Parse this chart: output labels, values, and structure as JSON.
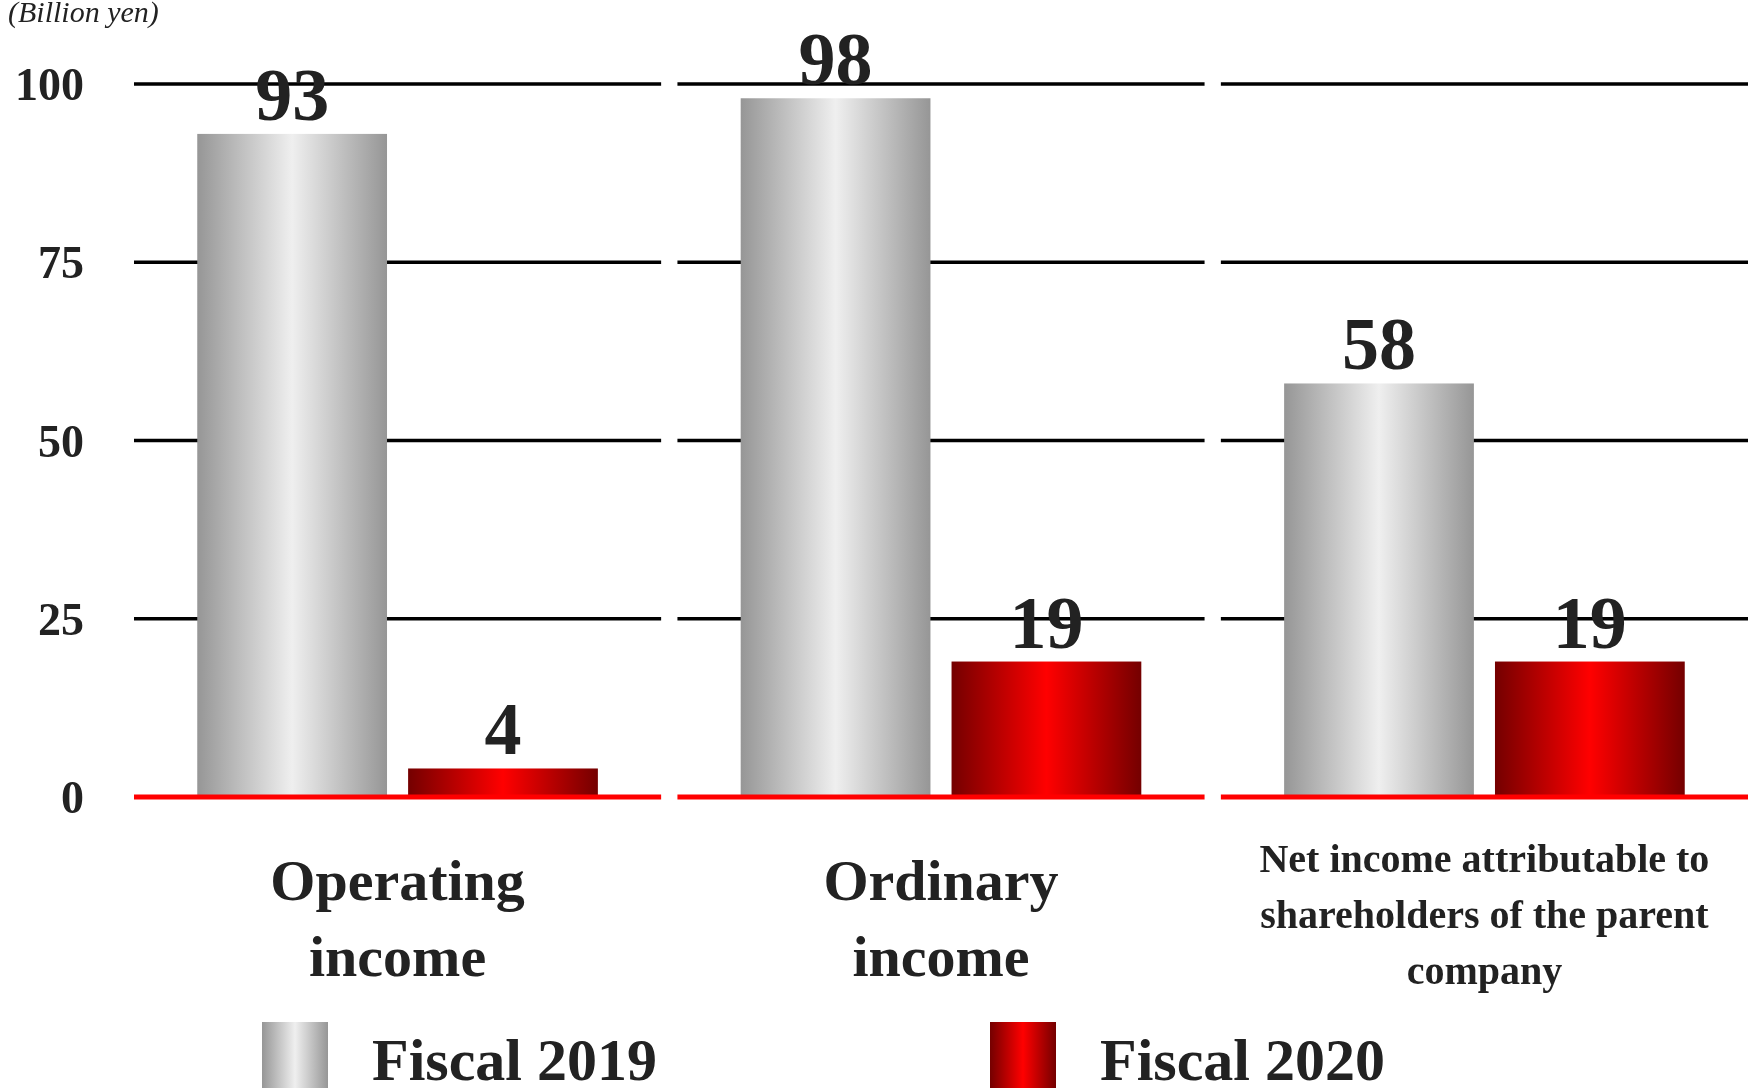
{
  "chart_data": {
    "type": "bar",
    "ylabel": "(Billion yen)",
    "categories": [
      "Operating income",
      "Ordinary income",
      "Net income attributable to shareholders of the parent company"
    ],
    "series": [
      {
        "name": "Fiscal 2019",
        "color": "#c8c8c8",
        "values": [
          93,
          98,
          58
        ]
      },
      {
        "name": "Fiscal 2020",
        "color": "#ff0000",
        "values": [
          4,
          19,
          19
        ]
      }
    ],
    "ylim": [
      0,
      100
    ],
    "yticks": [
      0,
      25,
      50,
      75,
      100
    ],
    "grid": "y",
    "data_labels": true,
    "legend": "bottom"
  }
}
